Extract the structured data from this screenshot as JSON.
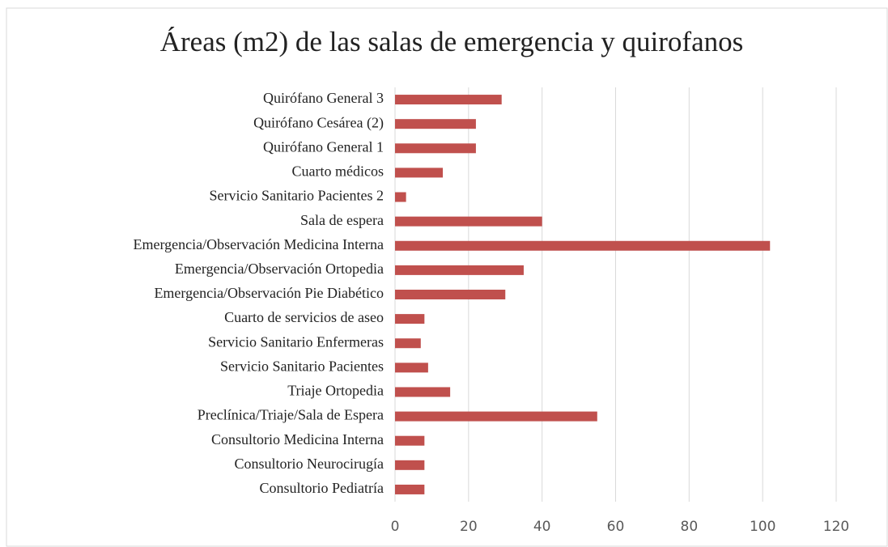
{
  "chart_data": {
    "type": "barh",
    "title": "Áreas (m2) de las salas de emergencia y quirofanos",
    "categories": [
      "Quirófano General 3",
      "Quirófano Cesárea (2)",
      "Quirófano General 1",
      "Cuarto médicos",
      "Servicio Sanitario Pacientes 2",
      "Sala de espera",
      "Emergencia/Observación Medicina Interna",
      "Emergencia/Observación Ortopedia",
      "Emergencia/Observación Pie Diabético",
      "Cuarto de servicios de aseo",
      "Servicio Sanitario Enfermeras",
      "Servicio Sanitario Pacientes",
      "Triaje Ortopedia",
      "Preclínica/Triaje/Sala de Espera",
      "Consultorio Medicina Interna",
      "Consultorio Neurocirugía",
      "Consultorio Pediatría"
    ],
    "values": [
      29,
      22,
      22,
      13,
      3,
      40,
      102,
      35,
      30,
      8,
      7,
      9,
      15,
      55,
      8,
      8,
      8
    ],
    "color": "#c0504d",
    "xlim": [
      0,
      120
    ],
    "xticks": [
      0,
      20,
      40,
      60,
      80,
      100,
      120
    ],
    "grid": true
  }
}
